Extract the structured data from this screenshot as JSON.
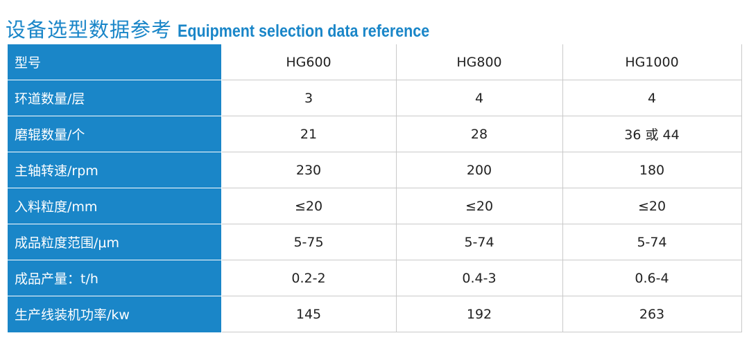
{
  "heading": {
    "title_zh": "设备选型数据参考",
    "title_en": "Equipment selection data reference"
  },
  "table": {
    "rows": [
      {
        "label": "型号",
        "values": [
          "HG600",
          "HG800",
          "HG1000"
        ]
      },
      {
        "label": "环道数量/层",
        "values": [
          "3",
          "4",
          "4"
        ]
      },
      {
        "label": "磨辊数量/个",
        "values": [
          "21",
          "28",
          "36 或 44"
        ]
      },
      {
        "label": "主轴转速/rpm",
        "values": [
          "230",
          "200",
          "180"
        ]
      },
      {
        "label": "入料粒度/mm",
        "values": [
          "≤20",
          "≤20",
          "≤20"
        ]
      },
      {
        "label": "成品粒度范围/μm",
        "values": [
          "5-75",
          "5-74",
          "5-74"
        ]
      },
      {
        "label": "成品产量：t/h",
        "values": [
          "0.2-2",
          "0.4-3",
          "0.6-4"
        ]
      },
      {
        "label": "生产线装机功率/kw",
        "values": [
          "145",
          "192",
          "263"
        ]
      }
    ]
  },
  "colors": {
    "accent": "#1a86c8",
    "label_text": "#ffffff",
    "cell_text": "#222222",
    "grid": "#c9c9c9"
  }
}
